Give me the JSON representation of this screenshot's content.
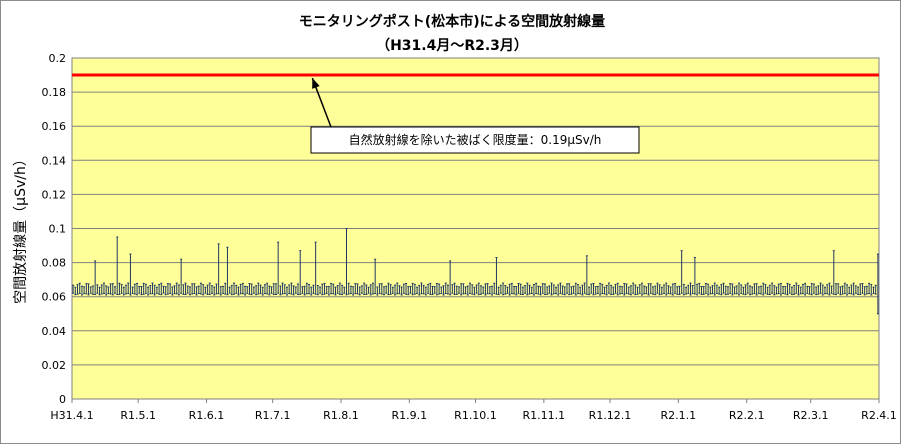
{
  "chart_data": {
    "type": "line",
    "title": "モニタリングポスト(松本市)による空間放射線量",
    "subtitle": "（H31.4月～R2.3月）",
    "xlabel": "",
    "ylabel": "空間放射線量（μSv/h）",
    "ylim": [
      0,
      0.2
    ],
    "y_ticks": [
      "0",
      "0.02",
      "0.04",
      "0.06",
      "0.08",
      "0.1",
      "0.12",
      "0.14",
      "0.16",
      "0.18",
      "0.2"
    ],
    "y_tick_values": [
      0,
      0.02,
      0.04,
      0.06,
      0.08,
      0.1,
      0.12,
      0.14,
      0.16,
      0.18,
      0.2
    ],
    "x_ticks": [
      "H31.4.1",
      "R1.5.1",
      "R1.6.1",
      "R1.7.1",
      "R1.8.1",
      "R1.9.1",
      "R1.10.1",
      "R1.11.1",
      "R1.12.1",
      "R2.1.1",
      "R2.2.1",
      "R2.3.1",
      "R2.4.1"
    ],
    "x_tick_values": [
      "2019-04-01",
      "2019-05-01",
      "2019-06-01",
      "2019-07-01",
      "2019-08-01",
      "2019-09-01",
      "2019-10-01",
      "2019-11-01",
      "2019-12-01",
      "2020-01-01",
      "2020-02-01",
      "2020-03-01",
      "2020-04-01"
    ],
    "xlim": [
      "2019-04-01",
      "2020-04-01"
    ],
    "grid": true,
    "plot_background": "#ffff99",
    "series": [
      {
        "color": "#1f3864",
        "type": "daily-range",
        "typical_low": 0.061,
        "typical_high": 0.068,
        "peaks": [
          {
            "x": "2019-04-11",
            "y": 0.081
          },
          {
            "x": "2019-04-21",
            "y": 0.095
          },
          {
            "x": "2019-04-27",
            "y": 0.085
          },
          {
            "x": "2019-05-20",
            "y": 0.082
          },
          {
            "x": "2019-06-06",
            "y": 0.091
          },
          {
            "x": "2019-06-10",
            "y": 0.089
          },
          {
            "x": "2019-07-03",
            "y": 0.092
          },
          {
            "x": "2019-07-13",
            "y": 0.087
          },
          {
            "x": "2019-07-20",
            "y": 0.092
          },
          {
            "x": "2019-08-03",
            "y": 0.1
          },
          {
            "x": "2019-08-16",
            "y": 0.082
          },
          {
            "x": "2019-09-19",
            "y": 0.081
          },
          {
            "x": "2019-10-10",
            "y": 0.083
          },
          {
            "x": "2019-11-20",
            "y": 0.084
          },
          {
            "x": "2020-01-02",
            "y": 0.087
          },
          {
            "x": "2020-01-08",
            "y": 0.083
          },
          {
            "x": "2020-03-11",
            "y": 0.087
          },
          {
            "x": "2020-03-31",
            "y": 0.085
          }
        ],
        "lows": [
          {
            "x": "2020-03-31",
            "y": 0.05
          }
        ]
      },
      {
        "name": "自然放射線を除いた被ばく限度量",
        "color": "#ff0000",
        "type": "constant",
        "value": 0.19
      }
    ],
    "annotations": [
      {
        "text": "自然放射線を除いた被ばく限度量：0.19μSv/h",
        "arrow_to": {
          "x": "2019-07-19",
          "y": 0.19
        }
      }
    ]
  }
}
